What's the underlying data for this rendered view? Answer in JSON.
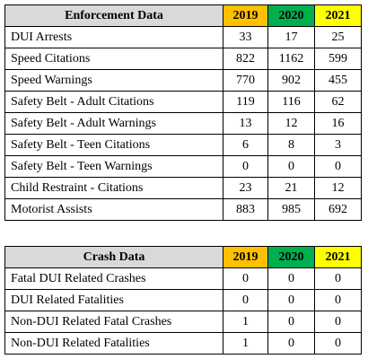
{
  "tables": [
    {
      "header": [
        "Enforcement Data",
        "2019",
        "2020",
        "2021"
      ],
      "rows": [
        [
          "DUI Arrests",
          33,
          17,
          25
        ],
        [
          "Speed Citations",
          822,
          1162,
          599
        ],
        [
          "Speed Warnings",
          770,
          902,
          455
        ],
        [
          "Safety Belt - Adult Citations",
          119,
          116,
          62
        ],
        [
          "Safety Belt - Adult Warnings",
          13,
          12,
          16
        ],
        [
          "Safety Belt - Teen Citations",
          6,
          8,
          3
        ],
        [
          "Safety Belt - Teen Warnings",
          0,
          0,
          0
        ],
        [
          "Child Restraint - Citations",
          23,
          21,
          12
        ],
        [
          "Motorist Assists",
          883,
          985,
          692
        ]
      ]
    },
    {
      "header": [
        "Crash Data",
        "2019",
        "2020",
        "2021"
      ],
      "rows": [
        [
          "Fatal DUI Related Crashes",
          0,
          0,
          0
        ],
        [
          "DUI Related Fatalities",
          0,
          0,
          0
        ],
        [
          "Non-DUI Related Fatal Crashes",
          1,
          0,
          0
        ],
        [
          "Non-DUI Related Fatalities",
          1,
          0,
          0
        ]
      ]
    }
  ]
}
